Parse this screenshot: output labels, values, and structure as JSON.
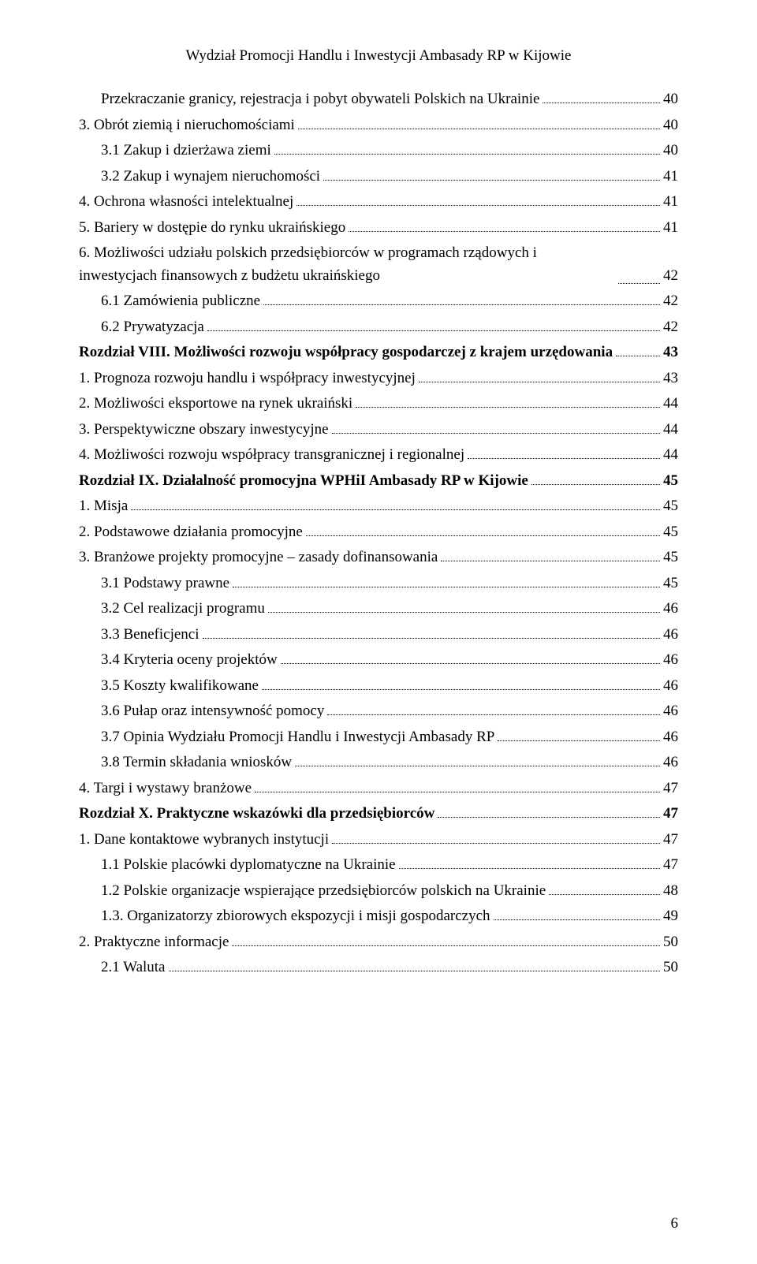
{
  "header": "Wydział Promocji Handlu i Inwestycji Ambasady RP w Kijowie",
  "pageNumber": "6",
  "toc": [
    {
      "label": "Przekraczanie granicy, rejestracja i pobyt obywateli Polskich na Ukrainie",
      "page": "40",
      "indent": 1,
      "bold": false
    },
    {
      "label": "3.  Obrót ziemią i nieruchomościami",
      "page": "40",
      "indent": 0,
      "bold": false
    },
    {
      "label": "3.1 Zakup i dzierżawa ziemi",
      "page": "40",
      "indent": 1,
      "bold": false
    },
    {
      "label": "3.2 Zakup i wynajem nieruchomości",
      "page": "41",
      "indent": 1,
      "bold": false
    },
    {
      "label": "4.  Ochrona własności intelektualnej",
      "page": "41",
      "indent": 0,
      "bold": false
    },
    {
      "label": "5.  Bariery w dostępie do rynku ukraińskiego",
      "page": "41",
      "indent": 0,
      "bold": false
    },
    {
      "label": "6.  Możliwości udziału polskich przedsiębiorców w programach rządowych i inwestycjach finansowych z budżetu ukraińskiego",
      "page": "42",
      "indent": 0,
      "bold": false,
      "wrap": true
    },
    {
      "label": "6.1 Zamówienia publiczne",
      "page": "42",
      "indent": 1,
      "bold": false
    },
    {
      "label": "6.2 Prywatyzacja",
      "page": "42",
      "indent": 1,
      "bold": false
    },
    {
      "label": "Rozdział VIII. Możliwości rozwoju współpracy gospodarczej z krajem urzędowania",
      "page": "43",
      "indent": 0,
      "bold": true
    },
    {
      "label": "1.  Prognoza rozwoju handlu i współpracy inwestycyjnej",
      "page": "43",
      "indent": 0,
      "bold": false
    },
    {
      "label": "2.  Możliwości eksportowe na rynek ukraiński",
      "page": "44",
      "indent": 0,
      "bold": false
    },
    {
      "label": "3.  Perspektywiczne obszary inwestycyjne",
      "page": "44",
      "indent": 0,
      "bold": false
    },
    {
      "label": "4.  Możliwości rozwoju współpracy transgranicznej i regionalnej",
      "page": "44",
      "indent": 0,
      "bold": false
    },
    {
      "label": "Rozdział IX. Działalność promocyjna WPHiI Ambasady RP w Kijowie",
      "page": "45",
      "indent": 0,
      "bold": true
    },
    {
      "label": "1.  Misja",
      "page": "45",
      "indent": 0,
      "bold": false
    },
    {
      "label": "2.  Podstawowe działania promocyjne",
      "page": "45",
      "indent": 0,
      "bold": false
    },
    {
      "label": "3.  Branżowe projekty promocyjne – zasady dofinansowania",
      "page": "45",
      "indent": 0,
      "bold": false
    },
    {
      "label": "3.1 Podstawy prawne",
      "page": "45",
      "indent": 1,
      "bold": false
    },
    {
      "label": "3.2 Cel realizacji programu",
      "page": "46",
      "indent": 1,
      "bold": false
    },
    {
      "label": "3.3 Beneficjenci",
      "page": "46",
      "indent": 1,
      "bold": false
    },
    {
      "label": "3.4 Kryteria oceny projektów",
      "page": "46",
      "indent": 1,
      "bold": false
    },
    {
      "label": "3.5 Koszty kwalifikowane",
      "page": "46",
      "indent": 1,
      "bold": false
    },
    {
      "label": "3.6 Pułap oraz intensywność pomocy",
      "page": "46",
      "indent": 1,
      "bold": false
    },
    {
      "label": "3.7 Opinia Wydziału Promocji Handlu i Inwestycji Ambasady RP",
      "page": "46",
      "indent": 1,
      "bold": false
    },
    {
      "label": "3.8 Termin składania wniosków",
      "page": "46",
      "indent": 1,
      "bold": false
    },
    {
      "label": "4.  Targi i wystawy branżowe",
      "page": "47",
      "indent": 0,
      "bold": false
    },
    {
      "label": "Rozdział X. Praktyczne wskazówki dla przedsiębiorców",
      "page": "47",
      "indent": 0,
      "bold": true
    },
    {
      "label": "1.  Dane kontaktowe wybranych instytucji",
      "page": "47",
      "indent": 0,
      "bold": false
    },
    {
      "label": "1.1 Polskie placówki dyplomatyczne na Ukrainie",
      "page": "47",
      "indent": 1,
      "bold": false
    },
    {
      "label": "1.2 Polskie organizacje wspierające przedsiębiorców polskich na Ukrainie",
      "page": "48",
      "indent": 1,
      "bold": false
    },
    {
      "label": "1.3. Organizatorzy zbiorowych ekspozycji i misji gospodarczych",
      "page": "49",
      "indent": 1,
      "bold": false
    },
    {
      "label": "2.  Praktyczne informacje",
      "page": "50",
      "indent": 0,
      "bold": false
    },
    {
      "label": "2.1 Waluta",
      "page": "50",
      "indent": 1,
      "bold": false
    }
  ]
}
